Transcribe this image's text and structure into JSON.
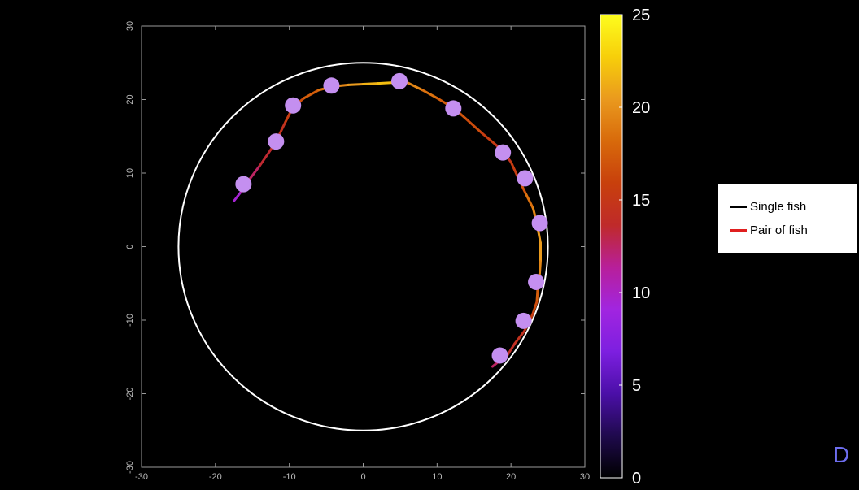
{
  "chart_data": {
    "type": "line",
    "title": "",
    "xlabel": "",
    "ylabel": "",
    "xlim": [
      -30,
      30
    ],
    "ylim": [
      -30,
      30
    ],
    "xticks": [
      -30,
      -20,
      -10,
      0,
      10,
      20,
      30
    ],
    "yticks": [
      -30,
      -20,
      -10,
      0,
      10,
      20,
      30
    ],
    "grid": false,
    "arena_circle": {
      "center": [
        0,
        0
      ],
      "radius": 25,
      "color": "#ffffff"
    },
    "trajectory": {
      "x": [
        -17.5,
        -16.5,
        -15.5,
        -14,
        -12.5,
        -11.8,
        -10.5,
        -9.5,
        -8,
        -6,
        -4,
        -2,
        0,
        2,
        4,
        5,
        6,
        8,
        10,
        12.3,
        14,
        16,
        18,
        19,
        20,
        21,
        22,
        23,
        23.5,
        24,
        24,
        23.8,
        23.6,
        23.5,
        23,
        22.5,
        21.8,
        20.5,
        19.5,
        18.5,
        17.5
      ],
      "y": [
        6.2,
        7.5,
        9,
        11,
        13.2,
        14.3,
        17,
        19,
        20.2,
        21.3,
        21.8,
        22,
        22.1,
        22.2,
        22.3,
        22.4,
        22.3,
        21.3,
        20.2,
        18.8,
        17.3,
        15.5,
        13.8,
        12.8,
        11.5,
        9.3,
        7.2,
        5.2,
        3.2,
        0.5,
        -2,
        -4.8,
        -6,
        -7.5,
        -9,
        -10.2,
        -11.5,
        -13.2,
        -14.8,
        -15.5,
        -16.3
      ],
      "speed": [
        8,
        11,
        12,
        13,
        14,
        14,
        15,
        16,
        17,
        18,
        19,
        20,
        21,
        22,
        22,
        21,
        20,
        19,
        18,
        17,
        17,
        16,
        15,
        14,
        15,
        16,
        18,
        19,
        20,
        21,
        20,
        19,
        18,
        17,
        16,
        15,
        15,
        14,
        14,
        13,
        12
      ],
      "line_width": 3
    },
    "markers": {
      "x": [
        -16.2,
        -11.8,
        -9.5,
        -4.3,
        4.9,
        12.2,
        18.9,
        21.9,
        23.9,
        23.4,
        21.7,
        18.5
      ],
      "y": [
        8.5,
        14.3,
        19.2,
        21.9,
        22.5,
        18.8,
        12.8,
        9.3,
        3.2,
        -4.8,
        -10.1,
        -14.8
      ],
      "color": "#c48ff0"
    },
    "colorbar": {
      "min": 0,
      "max": 25,
      "ticks": [
        0,
        5,
        10,
        15,
        20,
        25
      ],
      "colormap": [
        "#000000",
        "#1f0a4d",
        "#4b0fa8",
        "#7d1fe0",
        "#a125e0",
        "#b81f9a",
        "#bf2a2a",
        "#c8400c",
        "#d86a0b",
        "#ea9a1e",
        "#f7cf0a",
        "#fdfd1e"
      ]
    },
    "legend": {
      "placement": "right",
      "entries": [
        {
          "label": "Single fish",
          "color": "#000000"
        },
        {
          "label": "Pair of fish",
          "color": "#e01f1f"
        }
      ]
    }
  },
  "panel_label": "D"
}
